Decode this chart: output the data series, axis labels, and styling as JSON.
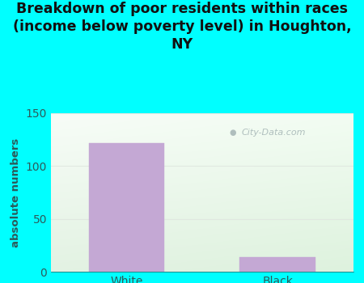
{
  "categories": [
    "White",
    "Black"
  ],
  "values": [
    122,
    14
  ],
  "bar_color": "#c4a8d4",
  "bar_edgecolor": "#c4a8d4",
  "title": "Breakdown of poor residents within races\n(income below poverty level) in Houghton,\nNY",
  "ylabel": "absolute numbers",
  "ylim": [
    0,
    150
  ],
  "yticks": [
    0,
    50,
    100,
    150
  ],
  "background_outer": "#00ffff",
  "title_fontsize": 12.5,
  "ylabel_fontsize": 9.5,
  "tick_fontsize": 10,
  "title_color": "#111111",
  "ylabel_color": "#2d5a5a",
  "tick_color": "#2d5a5a",
  "watermark_text": "City-Data.com",
  "watermark_color": "#a8b8b8",
  "grid_color": "#e0e8e0",
  "bar_width": 0.5,
  "bg_topleft": [
    0.88,
    0.95,
    0.88
  ],
  "bg_topright": [
    0.97,
    0.99,
    0.97
  ],
  "bg_bottomleft": [
    0.82,
    0.92,
    0.82
  ],
  "bg_bottomright": [
    0.95,
    0.99,
    0.95
  ]
}
